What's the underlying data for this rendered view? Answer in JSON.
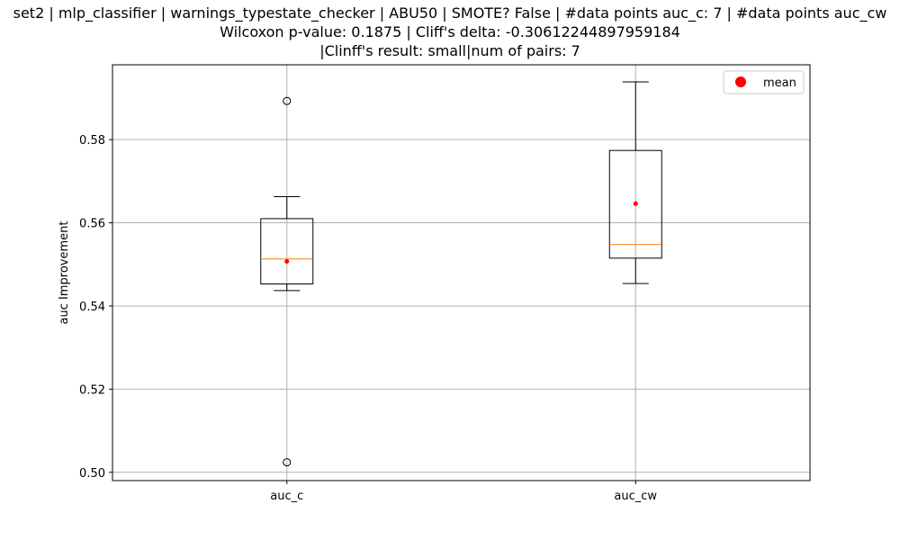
{
  "chart_data": {
    "type": "box",
    "title_lines": [
      "set2 | mlp_classifier | warnings_typestate_checker | ABU50 | SMOTE? False | #data points auc_c: 7 | #data points auc_cw",
      "Wilcoxon p-value: 0.1875 | Cliff's delta: -0.30612244897959184",
      "|Clinff's result: small|num of pairs: 7"
    ],
    "ylabel": "auc Improvement",
    "ylim": [
      0.498,
      0.598
    ],
    "yticks": [
      0.5,
      0.52,
      0.54,
      0.56,
      0.58
    ],
    "ytick_labels": [
      "0.50",
      "0.52",
      "0.54",
      "0.56",
      "0.58"
    ],
    "grid": true,
    "legend": {
      "placement": "upper-right",
      "entries": [
        {
          "label": "mean",
          "color": "#ff0000"
        }
      ]
    },
    "categories": [
      "auc_c",
      "auc_cw"
    ],
    "boxes": [
      {
        "category": "auc_c",
        "whisker_low": 0.5437,
        "q1": 0.5453,
        "median": 0.5513,
        "q3": 0.561,
        "whisker_high": 0.5663,
        "mean": 0.5507,
        "outliers": [
          0.5893,
          0.5024
        ]
      },
      {
        "category": "auc_cw",
        "whisker_low": 0.5454,
        "q1": 0.5515,
        "median": 0.5548,
        "q3": 0.5774,
        "whisker_high": 0.5939,
        "mean": 0.5646,
        "outliers": []
      }
    ],
    "colors": {
      "box": "#000000",
      "median": "#ff7f0e",
      "mean": "#ff0000",
      "grid": "#b0b0b0"
    }
  }
}
